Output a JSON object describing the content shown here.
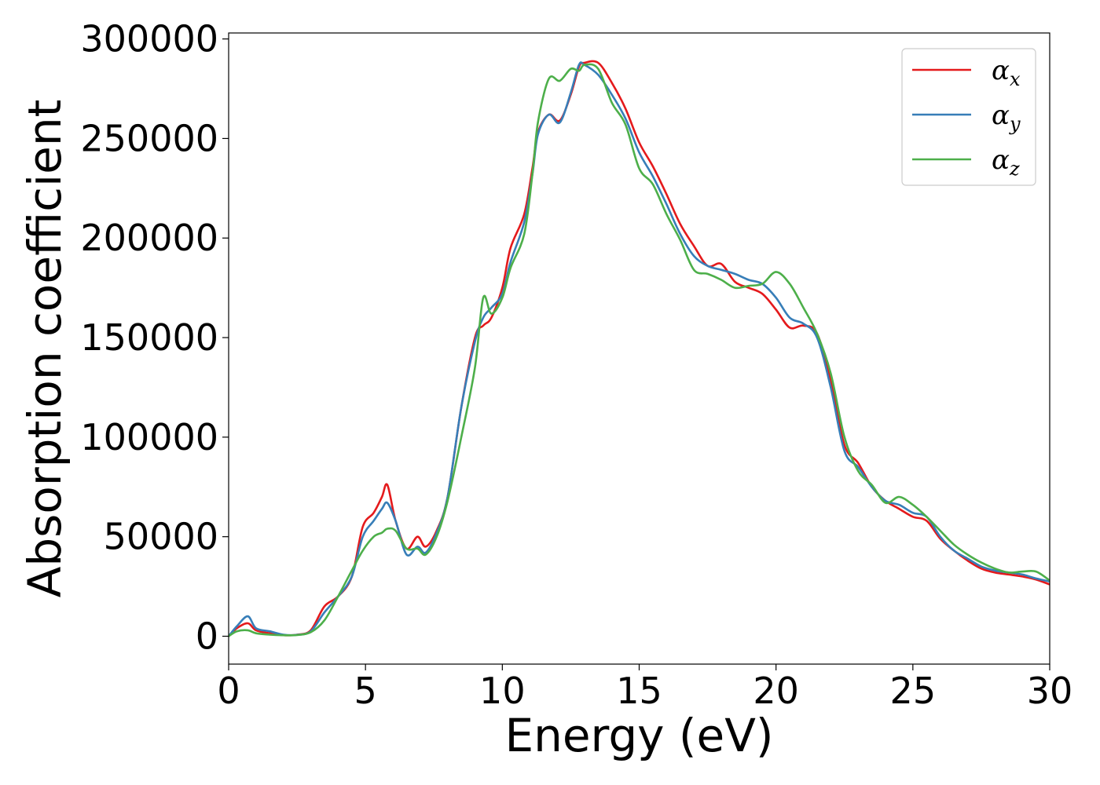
{
  "chart_data": {
    "type": "line",
    "xlabel": "Energy (eV)",
    "ylabel": "Absorption coefficient",
    "xlim": [
      0,
      30
    ],
    "ylim": [
      -14000,
      303000
    ],
    "xticks": [
      0,
      5,
      10,
      15,
      20,
      25,
      30
    ],
    "xtick_labels": [
      "0",
      "5",
      "10",
      "15",
      "20",
      "25",
      "30"
    ],
    "yticks": [
      0,
      50000,
      100000,
      150000,
      200000,
      250000,
      300000
    ],
    "ytick_labels": [
      "0",
      "50000",
      "100000",
      "150000",
      "200000",
      "250000",
      "300000"
    ],
    "grid": false,
    "legend_position": "top-right",
    "series": [
      {
        "name": "αx",
        "symbol": "α",
        "subscript": "x",
        "color": "#e41a1c",
        "points": [
          [
            0,
            0
          ],
          [
            0.3,
            4000
          ],
          [
            0.7,
            6500
          ],
          [
            1.0,
            3000
          ],
          [
            1.5,
            1500
          ],
          [
            2.0,
            500
          ],
          [
            2.5,
            800
          ],
          [
            3.0,
            3000
          ],
          [
            3.5,
            15000
          ],
          [
            4.0,
            20000
          ],
          [
            4.5,
            30000
          ],
          [
            4.9,
            55000
          ],
          [
            5.3,
            62000
          ],
          [
            5.6,
            70000
          ],
          [
            5.8,
            76000
          ],
          [
            6.1,
            58000
          ],
          [
            6.5,
            44000
          ],
          [
            6.9,
            50000
          ],
          [
            7.2,
            45000
          ],
          [
            7.6,
            53000
          ],
          [
            8.0,
            70000
          ],
          [
            8.5,
            115000
          ],
          [
            9.0,
            150000
          ],
          [
            9.3,
            156000
          ],
          [
            9.6,
            160000
          ],
          [
            10.0,
            175000
          ],
          [
            10.3,
            195000
          ],
          [
            10.8,
            212000
          ],
          [
            11.1,
            235000
          ],
          [
            11.3,
            253000
          ],
          [
            11.7,
            262000
          ],
          [
            12.1,
            259000
          ],
          [
            12.5,
            272000
          ],
          [
            12.8,
            286000
          ],
          [
            13.0,
            288000
          ],
          [
            13.5,
            288000
          ],
          [
            14.0,
            278000
          ],
          [
            14.5,
            265000
          ],
          [
            15.0,
            248000
          ],
          [
            15.5,
            236000
          ],
          [
            16.0,
            222000
          ],
          [
            16.5,
            207000
          ],
          [
            17.0,
            196000
          ],
          [
            17.5,
            186000
          ],
          [
            18.0,
            187000
          ],
          [
            18.5,
            178000
          ],
          [
            19.0,
            175000
          ],
          [
            19.5,
            172000
          ],
          [
            20.0,
            164000
          ],
          [
            20.5,
            155000
          ],
          [
            21.0,
            156000
          ],
          [
            21.5,
            152000
          ],
          [
            22.0,
            128000
          ],
          [
            22.5,
            96000
          ],
          [
            23.0,
            87000
          ],
          [
            23.5,
            75000
          ],
          [
            24.0,
            68000
          ],
          [
            24.5,
            64000
          ],
          [
            25.0,
            60000
          ],
          [
            25.5,
            58000
          ],
          [
            26.0,
            49000
          ],
          [
            26.5,
            43000
          ],
          [
            27.0,
            38000
          ],
          [
            27.5,
            34000
          ],
          [
            28.0,
            32000
          ],
          [
            28.5,
            31000
          ],
          [
            29.0,
            30000
          ],
          [
            29.5,
            28500
          ],
          [
            30.0,
            26000
          ]
        ]
      },
      {
        "name": "αy",
        "symbol": "α",
        "subscript": "y",
        "color": "#377eb8",
        "points": [
          [
            0,
            0
          ],
          [
            0.3,
            5000
          ],
          [
            0.7,
            10000
          ],
          [
            1.0,
            4000
          ],
          [
            1.5,
            2500
          ],
          [
            2.0,
            800
          ],
          [
            2.5,
            700
          ],
          [
            3.0,
            2500
          ],
          [
            3.5,
            12000
          ],
          [
            4.0,
            20000
          ],
          [
            4.5,
            30000
          ],
          [
            4.9,
            50000
          ],
          [
            5.3,
            58000
          ],
          [
            5.6,
            64000
          ],
          [
            5.8,
            67000
          ],
          [
            6.1,
            58000
          ],
          [
            6.5,
            41000
          ],
          [
            6.9,
            45000
          ],
          [
            7.2,
            42000
          ],
          [
            7.6,
            52000
          ],
          [
            8.0,
            70000
          ],
          [
            8.5,
            115000
          ],
          [
            9.0,
            148000
          ],
          [
            9.3,
            160000
          ],
          [
            9.6,
            165000
          ],
          [
            10.0,
            172000
          ],
          [
            10.3,
            188000
          ],
          [
            10.8,
            208000
          ],
          [
            11.1,
            232000
          ],
          [
            11.3,
            252000
          ],
          [
            11.7,
            262000
          ],
          [
            12.1,
            258000
          ],
          [
            12.5,
            273000
          ],
          [
            12.8,
            287000
          ],
          [
            13.0,
            287000
          ],
          [
            13.5,
            282000
          ],
          [
            14.0,
            272000
          ],
          [
            14.5,
            260000
          ],
          [
            15.0,
            243000
          ],
          [
            15.5,
            231000
          ],
          [
            16.0,
            217000
          ],
          [
            16.5,
            202000
          ],
          [
            17.0,
            191000
          ],
          [
            17.5,
            186000
          ],
          [
            18.0,
            184000
          ],
          [
            18.5,
            182000
          ],
          [
            19.0,
            179000
          ],
          [
            19.5,
            177000
          ],
          [
            20.0,
            170000
          ],
          [
            20.5,
            160000
          ],
          [
            21.0,
            157000
          ],
          [
            21.5,
            150000
          ],
          [
            22.0,
            125000
          ],
          [
            22.5,
            93000
          ],
          [
            23.0,
            85000
          ],
          [
            23.5,
            75000
          ],
          [
            24.0,
            68000
          ],
          [
            24.5,
            66000
          ],
          [
            25.0,
            62000
          ],
          [
            25.5,
            60000
          ],
          [
            26.0,
            50000
          ],
          [
            26.5,
            43000
          ],
          [
            27.0,
            39000
          ],
          [
            27.5,
            35000
          ],
          [
            28.0,
            33000
          ],
          [
            28.5,
            32000
          ],
          [
            29.0,
            31000
          ],
          [
            29.5,
            29000
          ],
          [
            30.0,
            27500
          ]
        ]
      },
      {
        "name": "αz",
        "symbol": "α",
        "subscript": "z",
        "color": "#4daf4a",
        "points": [
          [
            0,
            0
          ],
          [
            0.3,
            2500
          ],
          [
            0.7,
            3000
          ],
          [
            1.0,
            1500
          ],
          [
            1.5,
            800
          ],
          [
            2.0,
            500
          ],
          [
            2.5,
            600
          ],
          [
            3.0,
            2000
          ],
          [
            3.5,
            8000
          ],
          [
            4.0,
            20000
          ],
          [
            4.5,
            33000
          ],
          [
            4.9,
            43000
          ],
          [
            5.3,
            50000
          ],
          [
            5.6,
            52000
          ],
          [
            5.8,
            54000
          ],
          [
            6.1,
            53000
          ],
          [
            6.5,
            44000
          ],
          [
            6.9,
            44000
          ],
          [
            7.2,
            41000
          ],
          [
            7.6,
            50000
          ],
          [
            8.0,
            68000
          ],
          [
            8.5,
            100000
          ],
          [
            9.0,
            135000
          ],
          [
            9.3,
            170000
          ],
          [
            9.6,
            162000
          ],
          [
            10.0,
            170000
          ],
          [
            10.3,
            185000
          ],
          [
            10.8,
            202000
          ],
          [
            11.1,
            232000
          ],
          [
            11.3,
            258000
          ],
          [
            11.7,
            280000
          ],
          [
            12.1,
            279000
          ],
          [
            12.5,
            285000
          ],
          [
            12.8,
            284000
          ],
          [
            13.0,
            287000
          ],
          [
            13.5,
            285000
          ],
          [
            14.0,
            268000
          ],
          [
            14.5,
            257000
          ],
          [
            15.0,
            235000
          ],
          [
            15.5,
            227000
          ],
          [
            16.0,
            212000
          ],
          [
            16.5,
            199000
          ],
          [
            17.0,
            184000
          ],
          [
            17.5,
            182000
          ],
          [
            18.0,
            179000
          ],
          [
            18.5,
            175000
          ],
          [
            19.0,
            176000
          ],
          [
            19.5,
            177000
          ],
          [
            20.0,
            183000
          ],
          [
            20.5,
            177000
          ],
          [
            21.0,
            165000
          ],
          [
            21.5,
            152000
          ],
          [
            22.0,
            132000
          ],
          [
            22.5,
            100000
          ],
          [
            23.0,
            83000
          ],
          [
            23.5,
            76000
          ],
          [
            24.0,
            67000
          ],
          [
            24.5,
            70000
          ],
          [
            25.0,
            66000
          ],
          [
            25.5,
            60000
          ],
          [
            26.0,
            53000
          ],
          [
            26.5,
            46000
          ],
          [
            27.0,
            41000
          ],
          [
            27.5,
            37000
          ],
          [
            28.0,
            34000
          ],
          [
            28.5,
            32000
          ],
          [
            29.0,
            32500
          ],
          [
            29.5,
            32500
          ],
          [
            30.0,
            28000
          ]
        ]
      }
    ]
  }
}
